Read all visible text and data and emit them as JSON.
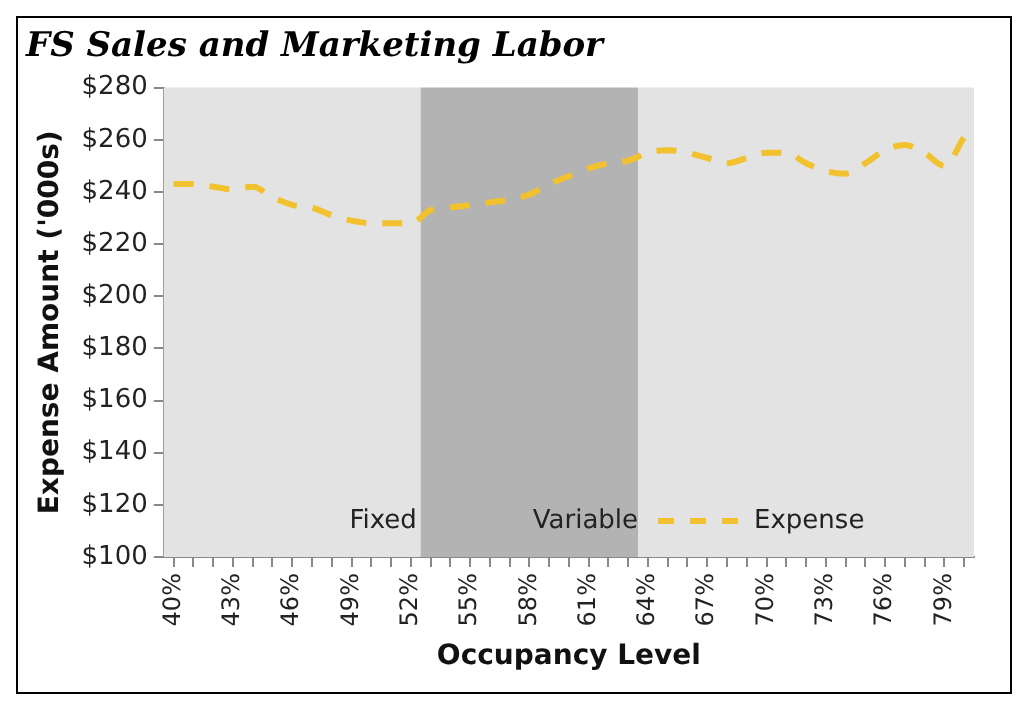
{
  "chart_data": {
    "type": "line",
    "title": "FS Sales and Marketing Labor",
    "xlabel": "Occupancy Level",
    "ylabel": "Expense Amount ('000s)",
    "x": [
      40,
      41,
      42,
      43,
      44,
      45,
      46,
      47,
      48,
      49,
      50,
      51,
      52,
      53,
      54,
      55,
      56,
      57,
      58,
      59,
      60,
      61,
      62,
      63,
      64,
      65,
      66,
      67,
      68,
      69,
      70,
      71,
      72,
      73,
      74,
      75,
      76,
      77,
      78,
      79,
      80
    ],
    "series": [
      {
        "name": "Expense",
        "color": "#f2c12e",
        "line_style": "dashed",
        "values": [
          243,
          243,
          242,
          241,
          242,
          238,
          235,
          234,
          231,
          229,
          228,
          228,
          228,
          233,
          234,
          235,
          236,
          237,
          239,
          243,
          246,
          249,
          251,
          252,
          255,
          256,
          255,
          253,
          251,
          253,
          255,
          255,
          251,
          248,
          247,
          251,
          256,
          258,
          255,
          250,
          261
        ]
      }
    ],
    "bands": [
      {
        "axis": "x",
        "from": 39.5,
        "to": 52.5,
        "label": "Fixed",
        "color": "#e3e3e3"
      },
      {
        "axis": "x",
        "from": 52.5,
        "to": 63.5,
        "label": "Variable",
        "color": "#b3b3b3"
      },
      {
        "axis": "x",
        "from": 63.5,
        "to": 80.5,
        "color": "#e3e3e3"
      }
    ],
    "xlim": [
      39.5,
      80.5
    ],
    "xticks": [
      {
        "value": 40,
        "label": "40%"
      },
      {
        "value": 41,
        "label": null
      },
      {
        "value": 42,
        "label": null
      },
      {
        "value": 43,
        "label": "43%"
      },
      {
        "value": 44,
        "label": null
      },
      {
        "value": 45,
        "label": null
      },
      {
        "value": 46,
        "label": "46%"
      },
      {
        "value": 47,
        "label": null
      },
      {
        "value": 48,
        "label": null
      },
      {
        "value": 49,
        "label": "49%"
      },
      {
        "value": 50,
        "label": null
      },
      {
        "value": 51,
        "label": null
      },
      {
        "value": 52,
        "label": "52%"
      },
      {
        "value": 53,
        "label": null
      },
      {
        "value": 54,
        "label": null
      },
      {
        "value": 55,
        "label": "55%"
      },
      {
        "value": 56,
        "label": null
      },
      {
        "value": 57,
        "label": null
      },
      {
        "value": 58,
        "label": "58%"
      },
      {
        "value": 59,
        "label": null
      },
      {
        "value": 60,
        "label": null
      },
      {
        "value": 61,
        "label": "61%"
      },
      {
        "value": 62,
        "label": null
      },
      {
        "value": 63,
        "label": null
      },
      {
        "value": 64,
        "label": "64%"
      },
      {
        "value": 65,
        "label": null
      },
      {
        "value": 66,
        "label": null
      },
      {
        "value": 67,
        "label": "67%"
      },
      {
        "value": 68,
        "label": null
      },
      {
        "value": 69,
        "label": null
      },
      {
        "value": 70,
        "label": "70%"
      },
      {
        "value": 71,
        "label": null
      },
      {
        "value": 72,
        "label": null
      },
      {
        "value": 73,
        "label": "73%"
      },
      {
        "value": 74,
        "label": null
      },
      {
        "value": 75,
        "label": null
      },
      {
        "value": 76,
        "label": "76%"
      },
      {
        "value": 77,
        "label": null
      },
      {
        "value": 78,
        "label": null
      },
      {
        "value": 79,
        "label": "79%"
      },
      {
        "value": 80,
        "label": null
      }
    ],
    "ylim": [
      100,
      280
    ],
    "yticks": [
      {
        "value": 100,
        "label": "$100"
      },
      {
        "value": 120,
        "label": "$120"
      },
      {
        "value": 140,
        "label": "$140"
      },
      {
        "value": 160,
        "label": "$160"
      },
      {
        "value": 180,
        "label": "$180"
      },
      {
        "value": 200,
        "label": "$200"
      },
      {
        "value": 220,
        "label": "$220"
      },
      {
        "value": 240,
        "label": "$240"
      },
      {
        "value": 260,
        "label": "$260"
      },
      {
        "value": 280,
        "label": "$280"
      }
    ],
    "grid": false,
    "legend": "bottom",
    "marker": "none"
  }
}
